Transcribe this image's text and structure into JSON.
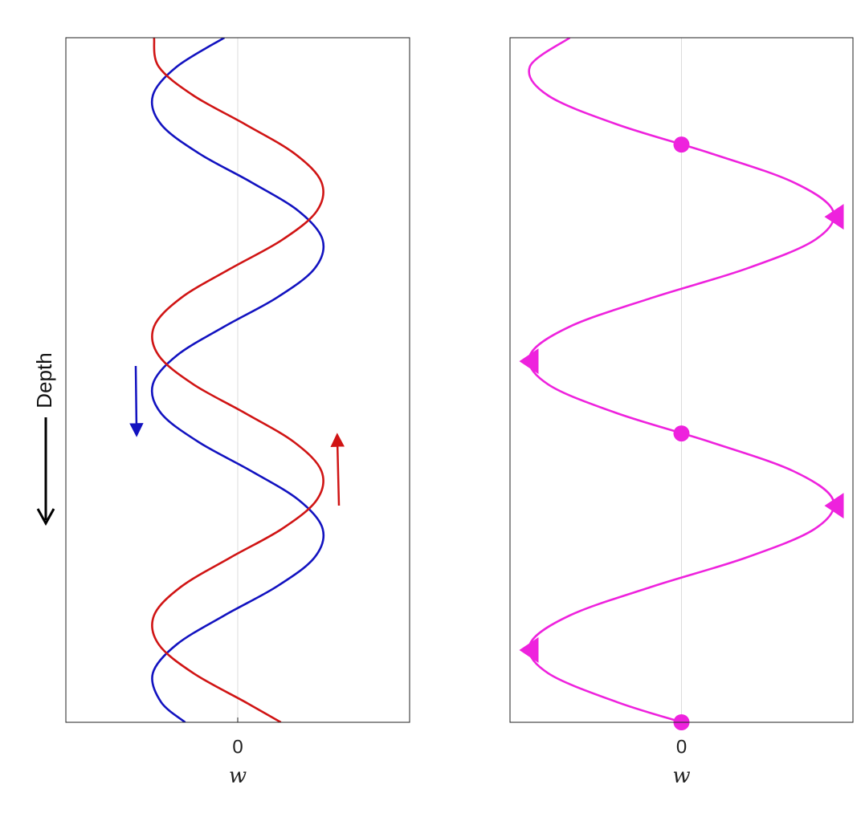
{
  "chart_data": [
    {
      "type": "line",
      "xlabel": "Depth",
      "ylabel": "w",
      "x": [
        0,
        0.1,
        0.2,
        0.3,
        0.4,
        0.5,
        0.6,
        0.7,
        0.8,
        0.9,
        1.0,
        1.1,
        1.2,
        1.3,
        1.4,
        1.5,
        1.6,
        1.7,
        1.8,
        1.9,
        2.0,
        2.1,
        2.2,
        2.3,
        2.37
      ],
      "xlim": [
        0,
        2.37
      ],
      "ylim": [
        -1,
        1
      ],
      "yticks": [
        0
      ],
      "grid": true,
      "series": [
        {
          "color": "#1212c0",
          "values": [
            -0.078,
            -0.354,
            -0.494,
            -0.446,
            -0.227,
            0.078,
            0.354,
            0.494,
            0.446,
            0.227,
            -0.078,
            -0.354,
            -0.494,
            -0.446,
            -0.227,
            0.078,
            0.354,
            0.494,
            0.446,
            0.227,
            -0.078,
            -0.354,
            -0.494,
            -0.446,
            -0.306
          ]
        },
        {
          "color": "#d01414",
          "values": [
            -0.487,
            -0.46,
            -0.258,
            0.044,
            0.328,
            0.487,
            0.46,
            0.258,
            -0.044,
            -0.328,
            -0.487,
            -0.46,
            -0.258,
            0.044,
            0.328,
            0.487,
            0.46,
            0.258,
            -0.044,
            -0.328,
            -0.487,
            -0.46,
            -0.258,
            0.044,
            0.251
          ]
        }
      ]
    },
    {
      "type": "line",
      "ylabel": "w",
      "x": [
        0,
        0.1,
        0.2,
        0.3,
        0.4,
        0.5,
        0.6,
        0.7,
        0.8,
        0.9,
        1.0,
        1.1,
        1.2,
        1.3,
        1.4,
        1.5,
        1.6,
        1.7,
        1.8,
        1.9,
        2.0,
        2.1,
        2.2,
        2.3,
        2.37
      ],
      "xlim": [
        0,
        2.37
      ],
      "ylim": [
        -1,
        1
      ],
      "yticks": [
        0
      ],
      "grid": true,
      "series": [
        {
          "color": "#ee22dd",
          "values": [
            -0.651,
            -0.884,
            -0.778,
            -0.376,
            0.17,
            0.651,
            0.884,
            0.778,
            0.376,
            -0.17,
            -0.651,
            -0.884,
            -0.778,
            -0.376,
            0.17,
            0.651,
            0.884,
            0.778,
            0.376,
            -0.17,
            -0.651,
            -0.884,
            -0.778,
            -0.376,
            0.003
          ]
        }
      ],
      "markers": [
        {
          "shape": "circle",
          "color": "#ee22dd",
          "x": [
            0.37,
            1.37,
            2.37
          ],
          "values": [
            0,
            0,
            0
          ]
        },
        {
          "shape": "triangle",
          "color": "#ee22dd",
          "x": [
            0.62,
            1.12,
            1.62,
            2.12
          ],
          "values": [
            0.89,
            -0.89,
            0.89,
            -0.89
          ]
        }
      ]
    }
  ]
}
